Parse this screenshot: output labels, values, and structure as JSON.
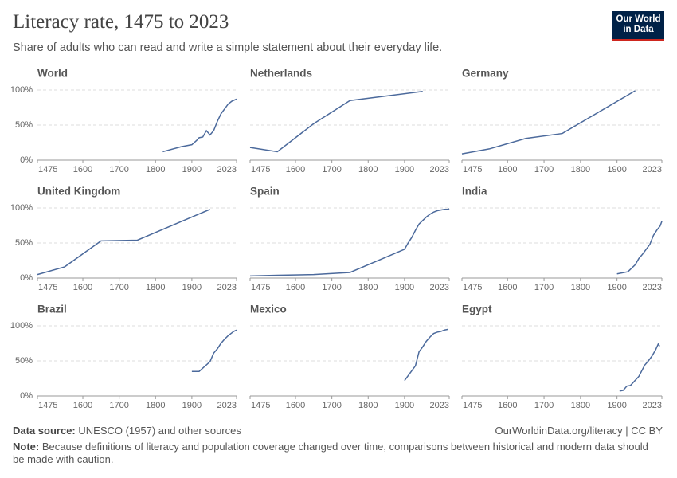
{
  "title": "Literacy rate, 1475 to 2023",
  "subtitle": "Share of adults who can read and write a simple statement about their everyday life.",
  "logo": [
    "Our World",
    "in Data"
  ],
  "footer": {
    "source_label": "Data source:",
    "source": "UNESCO (1957) and other sources",
    "url": "OurWorldinData.org/literacy | CC BY",
    "note_label": "Note:",
    "note": "Because definitions of literacy and population coverage changed over time, comparisons between historical and modern data should be made with caution."
  },
  "chart_data": [
    {
      "type": "line",
      "title": "World",
      "color": "#4c6a9c",
      "x": [
        1820,
        1870,
        1900,
        1913,
        1920,
        1930,
        1940,
        1950,
        1960,
        1970,
        1980,
        1990,
        2000,
        2010,
        2023
      ],
      "values": [
        12,
        19,
        22,
        28,
        32,
        33,
        42,
        36,
        42,
        55,
        66,
        73,
        80,
        84,
        87
      ],
      "xlim": [
        1475,
        2023
      ],
      "xticks": [
        1475,
        1600,
        1700,
        1800,
        1900,
        2023
      ],
      "ylim": [
        0,
        100
      ],
      "yticks": [
        {
          "value": 0,
          "label": "0%"
        },
        {
          "value": 50,
          "label": "50%"
        },
        {
          "value": 100,
          "label": "100%"
        }
      ],
      "grid": true
    },
    {
      "type": "line",
      "title": "Netherlands",
      "color": "#4c6a9c",
      "x": [
        1475,
        1550,
        1650,
        1750,
        1950
      ],
      "values": [
        18,
        12,
        52,
        85,
        98
      ],
      "xlim": [
        1475,
        2023
      ],
      "xticks": [
        1475,
        1600,
        1700,
        1800,
        1900,
        2023
      ],
      "ylim": [
        0,
        100
      ],
      "yticks": [
        0,
        50,
        100
      ],
      "grid": true
    },
    {
      "type": "line",
      "title": "Germany",
      "color": "#4c6a9c",
      "x": [
        1475,
        1550,
        1650,
        1750,
        1950
      ],
      "values": [
        9,
        16,
        31,
        38,
        99
      ],
      "xlim": [
        1475,
        2023
      ],
      "xticks": [
        1475,
        1600,
        1700,
        1800,
        1900,
        2023
      ],
      "ylim": [
        0,
        100
      ],
      "yticks": [
        0,
        50,
        100
      ],
      "grid": true
    },
    {
      "type": "line",
      "title": "United Kingdom",
      "color": "#4c6a9c",
      "x": [
        1475,
        1550,
        1650,
        1750,
        1950
      ],
      "values": [
        5,
        16,
        53,
        54,
        98
      ],
      "xlim": [
        1475,
        2023
      ],
      "xticks": [
        1475,
        1600,
        1700,
        1800,
        1900,
        2023
      ],
      "ylim": [
        0,
        100
      ],
      "yticks": [
        {
          "value": 0,
          "label": "0%"
        },
        {
          "value": 50,
          "label": "50%"
        },
        {
          "value": 100,
          "label": "100%"
        }
      ],
      "grid": true
    },
    {
      "type": "line",
      "title": "Spain",
      "color": "#4c6a9c",
      "x": [
        1475,
        1550,
        1650,
        1750,
        1900,
        1910,
        1920,
        1930,
        1940,
        1950,
        1960,
        1970,
        1980,
        1990,
        2000,
        2010,
        2020,
        2023
      ],
      "values": [
        3,
        4,
        5,
        8,
        41,
        50,
        58,
        68,
        77,
        82,
        87,
        91,
        94,
        96,
        97,
        98,
        98,
        99
      ],
      "xlim": [
        1475,
        2023
      ],
      "xticks": [
        1475,
        1600,
        1700,
        1800,
        1900,
        2023
      ],
      "ylim": [
        0,
        100
      ],
      "yticks": [
        0,
        50,
        100
      ],
      "grid": true
    },
    {
      "type": "line",
      "title": "India",
      "color": "#4c6a9c",
      "x": [
        1900,
        1930,
        1950,
        1960,
        1970,
        1980,
        1990,
        2000,
        2010,
        2018,
        2023
      ],
      "values": [
        6,
        9,
        19,
        28,
        34,
        41,
        48,
        61,
        69,
        74,
        81
      ],
      "xlim": [
        1475,
        2023
      ],
      "xticks": [
        1475,
        1600,
        1700,
        1800,
        1900,
        2023
      ],
      "ylim": [
        0,
        100
      ],
      "yticks": [
        0,
        50,
        100
      ],
      "grid": true
    },
    {
      "type": "line",
      "title": "Brazil",
      "color": "#4c6a9c",
      "x": [
        1900,
        1920,
        1950,
        1960,
        1970,
        1980,
        1990,
        2000,
        2010,
        2015,
        2023
      ],
      "values": [
        35,
        35,
        49,
        61,
        67,
        75,
        81,
        86,
        90,
        92,
        94
      ],
      "xlim": [
        1475,
        2023
      ],
      "xticks": [
        1475,
        1600,
        1700,
        1800,
        1900,
        2023
      ],
      "ylim": [
        0,
        100
      ],
      "yticks": [
        {
          "value": 0,
          "label": "0%"
        },
        {
          "value": 50,
          "label": "50%"
        },
        {
          "value": 100,
          "label": "100%"
        }
      ],
      "grid": true
    },
    {
      "type": "line",
      "title": "Mexico",
      "color": "#4c6a9c",
      "x": [
        1900,
        1930,
        1940,
        1950,
        1960,
        1970,
        1980,
        1990,
        2000,
        2010,
        2020
      ],
      "values": [
        22,
        43,
        63,
        70,
        78,
        84,
        89,
        91,
        92,
        94,
        95
      ],
      "xlim": [
        1475,
        2023
      ],
      "xticks": [
        1475,
        1600,
        1700,
        1800,
        1900,
        2023
      ],
      "ylim": [
        0,
        100
      ],
      "yticks": [
        0,
        50,
        100
      ],
      "grid": true
    },
    {
      "type": "line",
      "title": "Egypt",
      "color": "#4c6a9c",
      "x": [
        1907,
        1917,
        1927,
        1937,
        1960,
        1976,
        1986,
        1996,
        2006,
        2013,
        2017
      ],
      "values": [
        7,
        8,
        14,
        15,
        28,
        44,
        50,
        57,
        66,
        74,
        71
      ],
      "xlim": [
        1475,
        2023
      ],
      "xticks": [
        1475,
        1600,
        1700,
        1800,
        1900,
        2023
      ],
      "ylim": [
        0,
        100
      ],
      "yticks": [
        0,
        50,
        100
      ],
      "grid": true
    }
  ]
}
